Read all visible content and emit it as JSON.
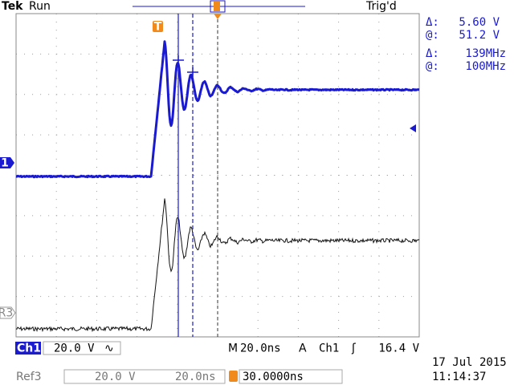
{
  "header": {
    "brand": "Tek",
    "state": "Run",
    "trigger_status": "Trig'd"
  },
  "markers": {
    "channel": "1",
    "reference": "R3",
    "trigger": "T"
  },
  "cursor_readout": {
    "voltage_delta_label": "Δ:",
    "voltage_delta": "5.60 V",
    "voltage_at_label": "@:",
    "voltage_at": "51.2 V",
    "freq_delta_label": "Δ:",
    "freq_delta": "139MHz",
    "freq_at_label": "@:",
    "freq_at": "100MHz"
  },
  "channel_bar": {
    "channel": "Ch1",
    "scale": "20.0 V",
    "coupling": "∿",
    "timebase_label": "M",
    "timebase": "20.0ns",
    "trigger_label": "A",
    "trigger_source": "Ch1",
    "trigger_slope": "ʃ",
    "trigger_level": "16.4 V"
  },
  "ref_bar": {
    "reference": "Ref3",
    "scale": "20.0 V",
    "timebase": "20.0ns",
    "position": "30.0000ns"
  },
  "timestamp": {
    "date": "17 Jul  2015",
    "time": "11:14:37"
  }
}
